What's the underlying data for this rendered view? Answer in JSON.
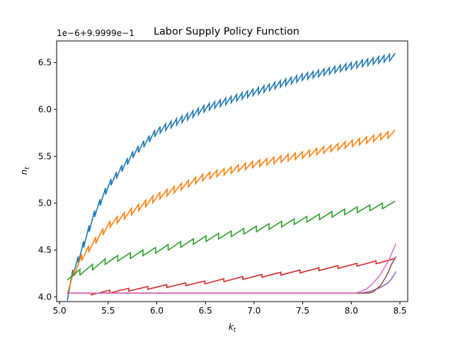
{
  "chart_data": {
    "type": "line",
    "title": "Labor Supply Policy Function",
    "xlabel_main": "k",
    "xlabel_sub": "t",
    "ylabel_main": "n",
    "ylabel_sub": "t",
    "offset_label": "1e−6+9.9999e−1",
    "xlim": [
      4.97,
      8.58
    ],
    "ylim": [
      3.95,
      6.73
    ],
    "x_ticks": [
      5.0,
      5.5,
      6.0,
      6.5,
      7.0,
      7.5,
      8.0,
      8.5
    ],
    "x_tick_labels": [
      "5.0",
      "5.5",
      "6.0",
      "6.5",
      "7.0",
      "7.5",
      "8.0",
      "8.5"
    ],
    "y_ticks": [
      4.0,
      4.5,
      5.0,
      5.5,
      6.0,
      6.5
    ],
    "y_tick_labels": [
      "4.0",
      "4.5",
      "5.0",
      "5.5",
      "6.0",
      "6.5"
    ],
    "grid": false,
    "legend": "none",
    "series": [
      {
        "color": "#1f77b4",
        "kind": "sawtooth",
        "x_start": 5.08,
        "x_end": 8.45,
        "points": [
          [
            5.08,
            4.03
          ],
          [
            5.1,
            4.2
          ],
          [
            5.2,
            4.45
          ],
          [
            5.35,
            4.9
          ],
          [
            5.5,
            5.22
          ],
          [
            5.75,
            5.55
          ],
          [
            6.0,
            5.8
          ],
          [
            6.5,
            6.05
          ],
          [
            7.0,
            6.22
          ],
          [
            7.5,
            6.38
          ],
          [
            8.0,
            6.5
          ],
          [
            8.45,
            6.6
          ]
        ],
        "n_teeth": 60,
        "tooth_depth": 0.07
      },
      {
        "color": "#ff7f0e",
        "kind": "sawtooth",
        "x_start": 5.08,
        "x_end": 8.45,
        "points": [
          [
            5.08,
            4.1
          ],
          [
            5.2,
            4.42
          ],
          [
            5.5,
            4.8
          ],
          [
            6.0,
            5.1
          ],
          [
            6.5,
            5.32
          ],
          [
            7.0,
            5.45
          ],
          [
            7.5,
            5.55
          ],
          [
            8.0,
            5.67
          ],
          [
            8.45,
            5.78
          ]
        ],
        "n_teeth": 46,
        "tooth_depth": 0.07
      },
      {
        "color": "#2ca02c",
        "kind": "sawtooth",
        "x_start": 5.08,
        "x_end": 8.45,
        "points": [
          [
            5.08,
            4.24
          ],
          [
            5.3,
            4.33
          ],
          [
            5.5,
            4.42
          ],
          [
            6.0,
            4.53
          ],
          [
            6.5,
            4.65
          ],
          [
            7.0,
            4.75
          ],
          [
            7.5,
            4.85
          ],
          [
            8.0,
            4.95
          ],
          [
            8.45,
            5.02
          ]
        ],
        "n_teeth": 26,
        "tooth_depth": 0.06
      },
      {
        "color": "#d62728",
        "kind": "sawtooth",
        "x_start": 5.32,
        "x_end": 8.45,
        "points": [
          [
            5.32,
            4.05
          ],
          [
            5.5,
            4.07
          ],
          [
            6.0,
            4.12
          ],
          [
            6.5,
            4.17
          ],
          [
            7.0,
            4.23
          ],
          [
            7.5,
            4.29
          ],
          [
            8.0,
            4.35
          ],
          [
            8.45,
            4.41
          ]
        ],
        "n_teeth": 16,
        "tooth_depth": 0.03
      },
      {
        "color": "#9467bd",
        "kind": "smooth",
        "points": [
          [
            5.08,
            4.04
          ],
          [
            8.1,
            4.04
          ],
          [
            8.2,
            4.06
          ],
          [
            8.3,
            4.1
          ],
          [
            8.38,
            4.15
          ],
          [
            8.42,
            4.2
          ],
          [
            8.46,
            4.27
          ]
        ]
      },
      {
        "color": "#8c564b",
        "kind": "smooth",
        "points": [
          [
            5.08,
            4.04
          ],
          [
            8.17,
            4.04
          ],
          [
            8.22,
            4.05
          ],
          [
            8.3,
            4.12
          ],
          [
            8.36,
            4.22
          ],
          [
            8.42,
            4.36
          ],
          [
            8.46,
            4.43
          ]
        ]
      },
      {
        "color": "#e377c2",
        "kind": "smooth",
        "points": [
          [
            5.08,
            4.04
          ],
          [
            8.05,
            4.04
          ],
          [
            8.15,
            4.08
          ],
          [
            8.22,
            4.14
          ],
          [
            8.3,
            4.24
          ],
          [
            8.38,
            4.38
          ],
          [
            8.46,
            4.57
          ]
        ]
      }
    ]
  }
}
